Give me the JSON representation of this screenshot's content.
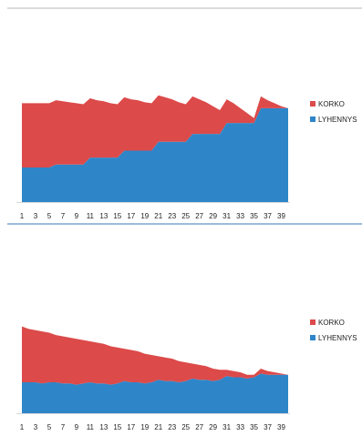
{
  "chart_data": [
    {
      "type": "area",
      "stacked": true,
      "x": [
        1,
        2,
        3,
        4,
        5,
        6,
        7,
        8,
        9,
        10,
        11,
        12,
        13,
        14,
        15,
        16,
        17,
        18,
        19,
        20,
        21,
        22,
        23,
        24,
        25,
        26,
        27,
        28,
        29,
        30,
        31,
        32,
        33,
        34,
        35,
        36,
        37,
        38,
        39,
        40
      ],
      "x_tick_labels": [
        "1",
        "3",
        "5",
        "7",
        "9",
        "11",
        "13",
        "15",
        "17",
        "19",
        "21",
        "23",
        "25",
        "27",
        "29",
        "31",
        "33",
        "35",
        "37",
        "39"
      ],
      "series": [
        {
          "name": "LYHENNYS",
          "color": "#2e86c9",
          "values": [
            35,
            35,
            35,
            35,
            35,
            38,
            38,
            38,
            38,
            38,
            45,
            45,
            45,
            45,
            45,
            52,
            52,
            52,
            52,
            52,
            61,
            61,
            61,
            61,
            61,
            69,
            69,
            69,
            69,
            69,
            80,
            80,
            80,
            80,
            80,
            95,
            95,
            95,
            95,
            95
          ]
        },
        {
          "name": "KORKO",
          "color": "#dc4a4a",
          "values": [
            65,
            65,
            65,
            65,
            65,
            65,
            64,
            63,
            62,
            61,
            60,
            58,
            57,
            55,
            54,
            54,
            52,
            51,
            49,
            48,
            47,
            45,
            43,
            40,
            38,
            38,
            35,
            32,
            28,
            24,
            24,
            20,
            15,
            10,
            5,
            12,
            8,
            5,
            2,
            0
          ]
        }
      ],
      "legend_position": "right",
      "grid": false,
      "ylim": [
        0,
        105
      ]
    },
    {
      "type": "area",
      "stacked": true,
      "x": [
        1,
        2,
        3,
        4,
        5,
        6,
        7,
        8,
        9,
        10,
        11,
        12,
        13,
        14,
        15,
        16,
        17,
        18,
        19,
        20,
        21,
        22,
        23,
        24,
        25,
        26,
        27,
        28,
        29,
        30,
        31,
        32,
        33,
        34,
        35,
        36,
        37,
        38,
        39,
        40
      ],
      "x_tick_labels": [
        "1",
        "3",
        "5",
        "7",
        "9",
        "11",
        "13",
        "15",
        "17",
        "19",
        "21",
        "23",
        "25",
        "27",
        "29",
        "31",
        "33",
        "35",
        "37",
        "39"
      ],
      "series": [
        {
          "name": "LYHENNYS",
          "color": "#2e86c9",
          "values": [
            25,
            25,
            25,
            24,
            25,
            25,
            24,
            24,
            23,
            24,
            25,
            24,
            24,
            23,
            24,
            26,
            25,
            25,
            24,
            25,
            27,
            26,
            26,
            25,
            26,
            28,
            27,
            27,
            26,
            27,
            30,
            29,
            29,
            28,
            29,
            32,
            31,
            31,
            31,
            31
          ]
        },
        {
          "name": "KORKO",
          "color": "#dc4a4a",
          "values": [
            45,
            43,
            42,
            42,
            40,
            38,
            38,
            37,
            37,
            35,
            33,
            33,
            32,
            31,
            29,
            26,
            26,
            25,
            24,
            22,
            19,
            19,
            18,
            17,
            15,
            12,
            12,
            11,
            10,
            8,
            5,
            5,
            4,
            3,
            2,
            4,
            3,
            2,
            1,
            0
          ]
        }
      ],
      "legend_position": "right",
      "grid": false,
      "ylim": [
        0,
        80
      ]
    }
  ]
}
